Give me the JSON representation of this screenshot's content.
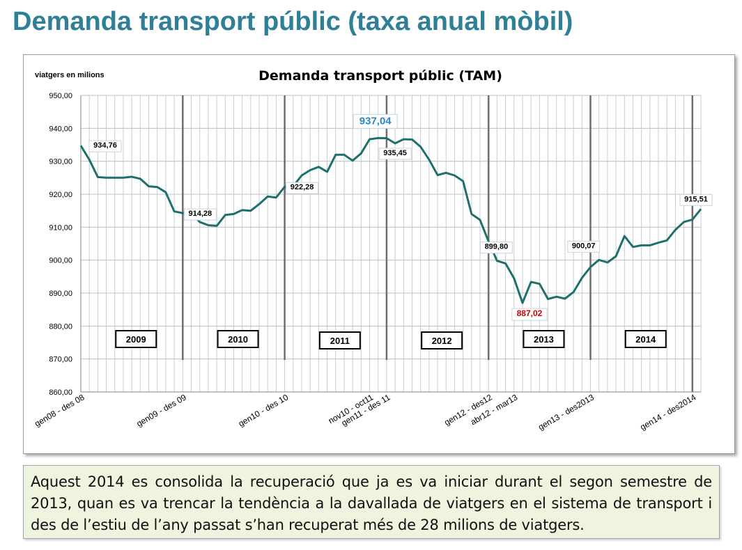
{
  "slide": {
    "title": "Demanda transport públic (taxa anual mòbil)",
    "note": "Aquest 2014 es consolida la recuperació que ja es va iniciar durant el segon semestre de 2013, quan es va trencar la tendència a la davallada de viatgers en el sistema de transport i des de l’estiu de l’any passat s’han recuperat més de 28 milions de viatgers."
  },
  "chart_data": {
    "type": "line",
    "title": "Demanda transport públic  (TAM)",
    "ylabel": "viatgers en milions",
    "ylim": [
      860,
      950
    ],
    "yticks": [
      "950,00",
      "940,00",
      "930,00",
      "920,00",
      "910,00",
      "900,00",
      "890,00",
      "880,00",
      "870,00",
      "860,00"
    ],
    "grid": true,
    "x_labels": [
      {
        "label": "gen08 - des 08",
        "index": 0
      },
      {
        "label": "gen09 - des 09",
        "index": 12
      },
      {
        "label": "gen10 - des 10",
        "index": 24
      },
      {
        "label": "nov10 - oct11",
        "index": 34
      },
      {
        "label": "gen11 - des 11",
        "index": 36
      },
      {
        "label": "gen12 - des12",
        "index": 48
      },
      {
        "label": "abr12 - mar13",
        "index": 51
      },
      {
        "label": "gen13 - des2013",
        "index": 60
      },
      {
        "label": "gen14 - des2014",
        "index": 72
      }
    ],
    "year_boxes": [
      "2009",
      "2010",
      "2011",
      "2012",
      "2013",
      "2014"
    ],
    "series": [
      {
        "color": "#1f6f6f",
        "values": [
          934.76,
          930.5,
          925.2,
          925.0,
          925.0,
          925.0,
          925.3,
          924.7,
          922.4,
          922.2,
          920.6,
          914.8,
          914.28,
          914.3,
          911.6,
          910.6,
          910.4,
          913.7,
          914.0,
          915.2,
          915.0,
          917.0,
          919.3,
          919.0,
          922.28,
          922.4,
          925.7,
          927.3,
          928.3,
          926.8,
          932.0,
          932.0,
          930.2,
          932.4,
          936.7,
          937.04,
          937.0,
          935.45,
          936.7,
          936.6,
          934.4,
          930.5,
          925.8,
          926.5,
          925.7,
          924.0,
          914.0,
          912.2,
          905.7,
          899.8,
          899.0,
          894.5,
          887.02,
          893.4,
          892.8,
          888.2,
          888.9,
          888.3,
          890.3,
          894.6,
          897.9,
          900.07,
          899.3,
          901.2,
          907.3,
          904.0,
          904.5,
          904.5,
          905.3,
          906.0,
          909.2,
          911.6,
          912.3,
          915.51
        ]
      }
    ],
    "data_labels": [
      {
        "index": 0,
        "text": "934,76",
        "color": "#000000"
      },
      {
        "index": 12,
        "text": "914,28",
        "color": "#000000"
      },
      {
        "index": 24,
        "text": "922,28",
        "color": "#000000"
      },
      {
        "index": 35,
        "text": "937,04",
        "color": "#2e86c1"
      },
      {
        "index": 37,
        "text": "935,45",
        "color": "#000000"
      },
      {
        "index": 49,
        "text": "899,80",
        "color": "#000000"
      },
      {
        "index": 52,
        "text": "887,02",
        "color": "#cc0000"
      },
      {
        "index": 61,
        "text": "900,07",
        "color": "#000000"
      },
      {
        "index": 73,
        "text": "915,51",
        "color": "#000000"
      }
    ]
  }
}
